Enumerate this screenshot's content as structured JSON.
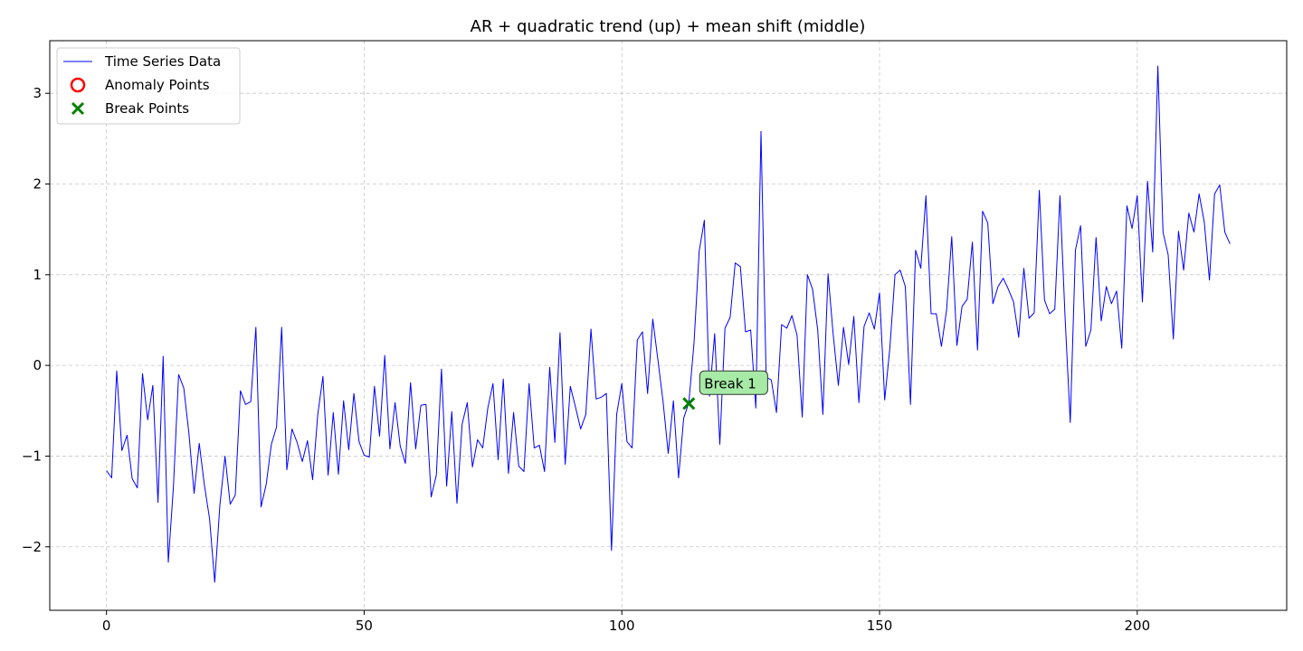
{
  "chart_data": {
    "type": "line",
    "title": "AR + quadratic trend (up) + mean shift (middle)",
    "xlabel": "",
    "ylabel": "",
    "xlim": [
      -11,
      229
    ],
    "ylim": [
      -2.7,
      3.58
    ],
    "grid": true,
    "legend_position": "top-left",
    "x_ticks": [
      0,
      50,
      100,
      150,
      200
    ],
    "x_tick_labels": [
      "0",
      "50",
      "100",
      "150",
      "200"
    ],
    "y_ticks": [
      -2,
      -1,
      0,
      1,
      2,
      3
    ],
    "y_tick_labels": [
      "−2",
      "−1",
      "0",
      "1",
      "2",
      "3"
    ],
    "series": [
      {
        "name": "Time Series Data",
        "color": "#0000ff",
        "x_start": 0,
        "values": [
          -1.16,
          -1.24,
          -0.06,
          -0.94,
          -0.77,
          -1.25,
          -1.35,
          -0.09,
          -0.6,
          -0.22,
          -1.51,
          0.1,
          -2.17,
          -1.33,
          -0.1,
          -0.25,
          -0.75,
          -1.41,
          -0.86,
          -1.32,
          -1.69,
          -2.39,
          -1.54,
          -1.0,
          -1.53,
          -1.43,
          -0.28,
          -0.43,
          -0.4,
          0.42,
          -1.56,
          -1.31,
          -0.87,
          -0.68,
          0.42,
          -1.15,
          -0.7,
          -0.85,
          -1.06,
          -0.83,
          -1.26,
          -0.54,
          -0.12,
          -1.21,
          -0.52,
          -1.2,
          -0.39,
          -0.93,
          -0.31,
          -0.84,
          -0.99,
          -1.01,
          -0.23,
          -0.78,
          0.11,
          -0.92,
          -0.41,
          -0.89,
          -1.08,
          -0.19,
          -0.92,
          -0.44,
          -0.43,
          -1.45,
          -1.21,
          -0.04,
          -1.33,
          -0.51,
          -1.52,
          -0.65,
          -0.41,
          -1.12,
          -0.82,
          -0.91,
          -0.47,
          -0.2,
          -1.04,
          -0.15,
          -1.19,
          -0.52,
          -1.11,
          -1.17,
          -0.2,
          -0.91,
          -0.88,
          -1.17,
          -0.02,
          -0.85,
          0.36,
          -1.09,
          -0.23,
          -0.46,
          -0.7,
          -0.54,
          0.4,
          -0.37,
          -0.35,
          -0.31,
          -2.04,
          -0.54,
          -0.2,
          -0.84,
          -0.91,
          0.28,
          0.37,
          -0.31,
          0.51,
          0.06,
          -0.4,
          -0.97,
          -0.39,
          -1.24,
          -0.58,
          -0.41,
          0.25,
          1.26,
          1.6,
          -0.34,
          0.35,
          -0.87,
          0.41,
          0.53,
          1.13,
          1.09,
          0.37,
          0.39,
          -0.47,
          2.58,
          -0.13,
          -0.16,
          -0.52,
          0.45,
          0.41,
          0.55,
          0.33,
          -0.57,
          1.0,
          0.84,
          0.39,
          -0.54,
          1.01,
          0.34,
          -0.22,
          0.42,
          0.01,
          0.54,
          -0.41,
          0.43,
          0.58,
          0.4,
          0.8,
          -0.38,
          0.19,
          1.0,
          1.05,
          0.87,
          -0.43,
          1.27,
          1.07,
          1.87,
          0.57,
          0.57,
          0.21,
          0.61,
          1.42,
          0.22,
          0.65,
          0.73,
          1.36,
          0.17,
          1.7,
          1.57,
          0.68,
          0.87,
          0.96,
          0.84,
          0.7,
          0.31,
          1.07,
          0.52,
          0.58,
          1.93,
          0.72,
          0.57,
          0.62,
          1.87,
          0.52,
          -0.63,
          1.27,
          1.54,
          0.21,
          0.39,
          1.41,
          0.49,
          0.87,
          0.68,
          0.82,
          0.19,
          1.76,
          1.51,
          1.87,
          0.7,
          2.03,
          1.25,
          3.3,
          1.47,
          1.22,
          0.29,
          1.48,
          1.05,
          1.68,
          1.47,
          1.89,
          1.58,
          0.94,
          1.89,
          1.99,
          1.47,
          1.34
        ]
      }
    ],
    "anomaly_points": [],
    "break_points": [
      {
        "x": 113,
        "y": -0.42,
        "label": "Break 1"
      }
    ],
    "legend": [
      {
        "label": "Time Series Data",
        "marker": "line",
        "color": "#0000ff"
      },
      {
        "label": "Anomaly Points",
        "marker": "circle",
        "color": "#ff0000"
      },
      {
        "label": "Break Points",
        "marker": "x",
        "color": "#008000"
      }
    ],
    "annotation_style": {
      "fill": "#a6eaa6",
      "border": "#333333"
    }
  }
}
